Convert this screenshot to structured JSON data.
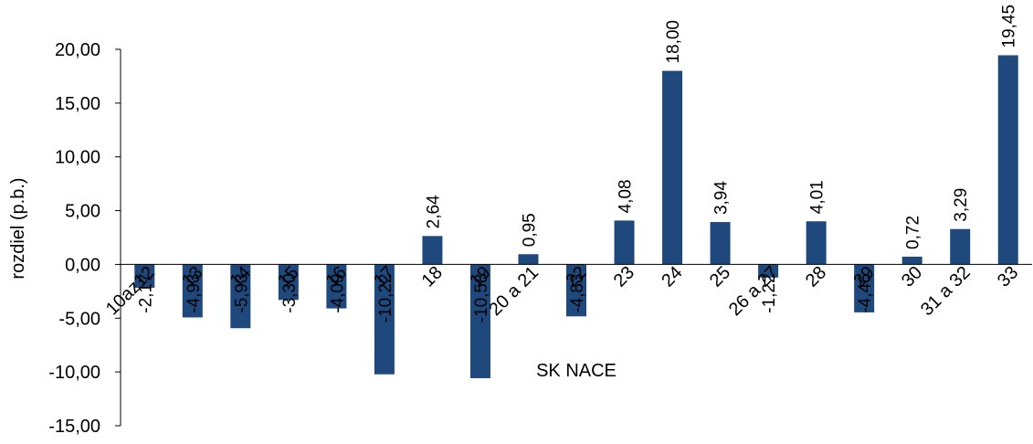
{
  "chart_data": {
    "type": "bar",
    "title": "",
    "xlabel": "SK NACE",
    "ylabel": "rozdiel (p.b.)",
    "ylim": [
      -15,
      20
    ],
    "yticks": [
      "20,00",
      "15,00",
      "10,00",
      "5,00",
      "0,00",
      "-5,00",
      "-10,00",
      "-15,00"
    ],
    "ytick_values": [
      20,
      15,
      10,
      5,
      0,
      -5,
      -10,
      -15
    ],
    "grid": false,
    "legend": "none",
    "bar_color": "#1f497d",
    "categories": [
      "10az12",
      "13",
      "14",
      "15",
      "16",
      "17",
      "18",
      "19",
      "20 a  21",
      "22",
      "23",
      "24",
      "25",
      "26 a 27",
      "28",
      "29",
      "30",
      "31 a 32",
      "33"
    ],
    "values": [
      -2.17,
      -4.93,
      -5.93,
      -3.3,
      -4.09,
      -10.22,
      2.64,
      -10.58,
      0.95,
      -4.83,
      4.08,
      18.0,
      3.94,
      -1.22,
      4.01,
      -4.46,
      0.72,
      3.29,
      19.45
    ],
    "value_labels": [
      "-2,17",
      "-4,93",
      "-5,93",
      "-3,30",
      "-4,09",
      "-10,22",
      "2,64",
      "-10,58",
      "0,95",
      "-4,83",
      "4,08",
      "18,00",
      "3,94",
      "-1,22",
      "4,01",
      "-4,46",
      "0,72",
      "3,29",
      "19,45"
    ]
  }
}
